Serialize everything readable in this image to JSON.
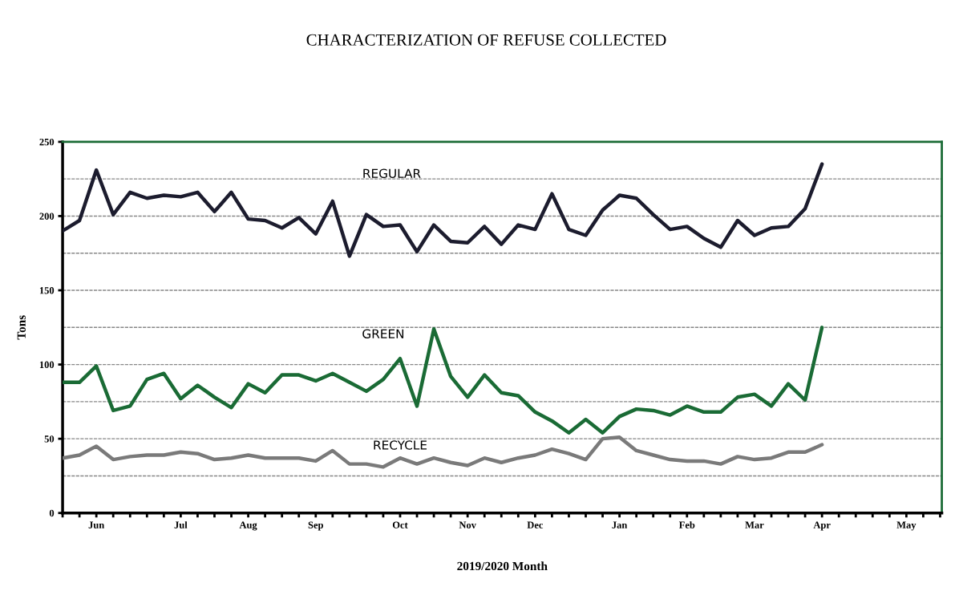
{
  "chart_data": {
    "type": "line",
    "title": "CHARACTERIZATION OF REFUSE COLLECTED",
    "xlabel": "2019/2020 Month",
    "ylabel": "Tons",
    "categories": [
      null,
      null,
      "Jun",
      null,
      null,
      null,
      null,
      "Jul",
      null,
      null,
      null,
      "Aug",
      null,
      null,
      null,
      "Sep",
      null,
      null,
      null,
      null,
      "Oct",
      null,
      null,
      null,
      "Nov",
      null,
      null,
      null,
      "Dec",
      null,
      null,
      null,
      null,
      "Jan",
      null,
      null,
      null,
      "Feb",
      null,
      null,
      null,
      "Mar",
      null,
      null,
      null,
      "Apr",
      null,
      null,
      null,
      null,
      "May",
      null,
      null
    ],
    "series": [
      {
        "name": "REGULAR",
        "color": "#1c1c2e",
        "values": [
          190,
          197,
          231,
          201,
          216,
          212,
          214,
          213,
          216,
          203,
          216,
          198,
          197,
          192,
          199,
          188,
          210,
          173,
          201,
          193,
          194,
          176,
          194,
          183,
          182,
          193,
          181,
          194,
          191,
          215,
          191,
          187,
          204,
          214,
          212,
          201,
          191,
          193,
          185,
          179,
          197,
          187,
          192,
          193,
          205,
          235,
          null,
          null,
          null,
          null,
          null,
          null,
          null
        ]
      },
      {
        "name": "GREEN",
        "color": "#1a6b35",
        "values": [
          88,
          88,
          99,
          69,
          72,
          90,
          94,
          77,
          86,
          78,
          71,
          87,
          81,
          93,
          93,
          89,
          94,
          88,
          82,
          90,
          104,
          72,
          124,
          92,
          78,
          93,
          81,
          79,
          68,
          62,
          54,
          63,
          54,
          65,
          70,
          69,
          66,
          72,
          68,
          68,
          78,
          80,
          72,
          87,
          76,
          125,
          null,
          null,
          null,
          null,
          null,
          null,
          null
        ]
      },
      {
        "name": "RECYCLE",
        "color": "#7a7a7a",
        "values": [
          37,
          39,
          45,
          36,
          38,
          39,
          39,
          41,
          40,
          36,
          37,
          39,
          37,
          37,
          37,
          35,
          42,
          33,
          33,
          31,
          37,
          33,
          37,
          34,
          32,
          37,
          34,
          37,
          39,
          43,
          40,
          36,
          50,
          51,
          42,
          39,
          36,
          35,
          35,
          33,
          38,
          36,
          37,
          41,
          41,
          46,
          null,
          null,
          null,
          null,
          null,
          null,
          null
        ]
      }
    ],
    "ylim": [
      0,
      250
    ],
    "yticks": [
      0,
      {
        "value": 25,
        "label": null
      },
      50,
      {
        "value": 75,
        "label": null
      },
      100,
      {
        "value": 125,
        "label": null
      },
      150,
      {
        "value": 175,
        "label": null
      },
      200,
      {
        "value": 225,
        "label": null
      },
      250
    ],
    "grid": "y",
    "legend": false,
    "marker": "none",
    "line_style": "solid"
  }
}
